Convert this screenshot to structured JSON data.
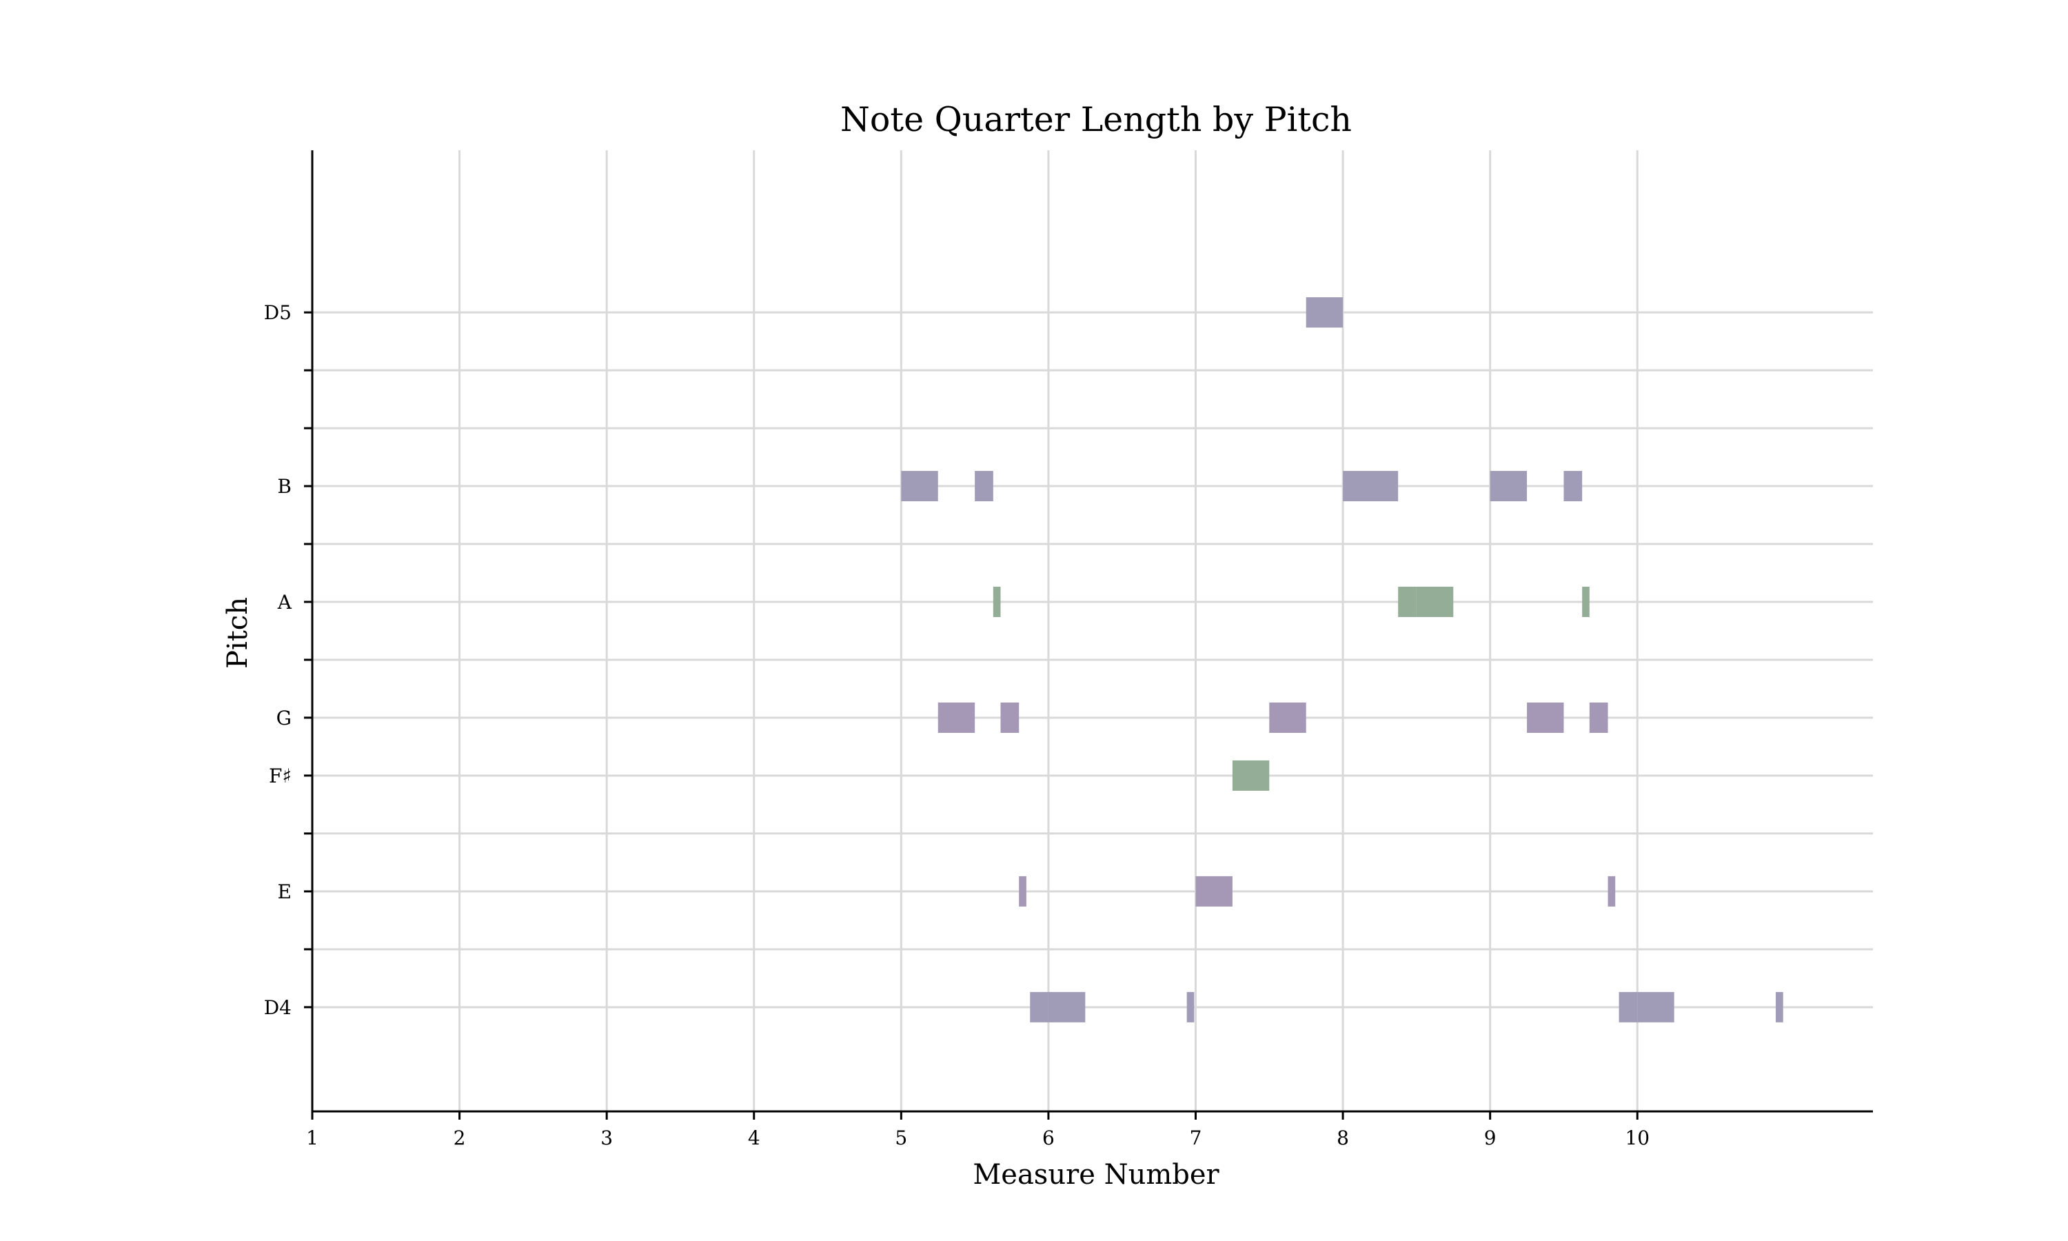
{
  "chart_data": {
    "type": "bar",
    "title": "Note Quarter Length by Pitch",
    "xlabel": "Measure Number",
    "ylabel": "Pitch",
    "xlim": [
      1,
      11.6
    ],
    "ylim": [
      60.2,
      76.8
    ],
    "x_ticks": [
      1,
      2,
      3,
      4,
      5,
      6,
      7,
      8,
      9,
      10
    ],
    "y_ticks": [
      {
        "midi": 62,
        "label": "D4"
      },
      {
        "midi": 63,
        "label": ""
      },
      {
        "midi": 64,
        "label": "E"
      },
      {
        "midi": 65,
        "label": ""
      },
      {
        "midi": 66,
        "label": "F♯"
      },
      {
        "midi": 67,
        "label": "G"
      },
      {
        "midi": 68,
        "label": ""
      },
      {
        "midi": 69,
        "label": "A"
      },
      {
        "midi": 70,
        "label": ""
      },
      {
        "midi": 71,
        "label": "B"
      },
      {
        "midi": 72,
        "label": ""
      },
      {
        "midi": 73,
        "label": ""
      },
      {
        "midi": 74,
        "label": "D5"
      }
    ],
    "grid": true,
    "colors": {
      "purple": "#a09cb8",
      "mauve": "#a598b6",
      "green": "#94ad96"
    },
    "notes": [
      {
        "pitch": 74,
        "start": 7.75,
        "length": 0.25,
        "color": "purple"
      },
      {
        "pitch": 71,
        "start": 5.0,
        "length": 0.25,
        "color": "purple"
      },
      {
        "pitch": 71,
        "start": 5.5,
        "length": 0.125,
        "color": "purple"
      },
      {
        "pitch": 71,
        "start": 8.0,
        "length": 0.375,
        "color": "purple"
      },
      {
        "pitch": 71,
        "start": 9.0,
        "length": 0.25,
        "color": "purple"
      },
      {
        "pitch": 71,
        "start": 9.5,
        "length": 0.125,
        "color": "purple"
      },
      {
        "pitch": 69,
        "start": 5.625,
        "length": 0.05,
        "color": "green"
      },
      {
        "pitch": 69,
        "start": 8.375,
        "length": 0.125,
        "color": "green"
      },
      {
        "pitch": 69,
        "start": 8.5,
        "length": 0.25,
        "color": "green"
      },
      {
        "pitch": 69,
        "start": 9.625,
        "length": 0.05,
        "color": "green"
      },
      {
        "pitch": 67,
        "start": 5.25,
        "length": 0.25,
        "color": "mauve"
      },
      {
        "pitch": 67,
        "start": 5.675,
        "length": 0.125,
        "color": "mauve"
      },
      {
        "pitch": 67,
        "start": 7.5,
        "length": 0.25,
        "color": "mauve"
      },
      {
        "pitch": 67,
        "start": 9.25,
        "length": 0.25,
        "color": "mauve"
      },
      {
        "pitch": 67,
        "start": 9.675,
        "length": 0.125,
        "color": "mauve"
      },
      {
        "pitch": 66,
        "start": 7.25,
        "length": 0.25,
        "color": "green"
      },
      {
        "pitch": 64,
        "start": 5.8,
        "length": 0.05,
        "color": "mauve"
      },
      {
        "pitch": 64,
        "start": 7.0,
        "length": 0.25,
        "color": "mauve"
      },
      {
        "pitch": 64,
        "start": 9.8,
        "length": 0.05,
        "color": "mauve"
      },
      {
        "pitch": 62,
        "start": 5.875,
        "length": 0.125,
        "color": "purple"
      },
      {
        "pitch": 62,
        "start": 6.0,
        "length": 0.25,
        "color": "purple"
      },
      {
        "pitch": 62,
        "start": 6.94,
        "length": 0.05,
        "color": "purple"
      },
      {
        "pitch": 62,
        "start": 9.875,
        "length": 0.125,
        "color": "purple"
      },
      {
        "pitch": 62,
        "start": 10.0,
        "length": 0.25,
        "color": "purple"
      },
      {
        "pitch": 62,
        "start": 10.94,
        "length": 0.05,
        "color": "purple"
      }
    ]
  }
}
